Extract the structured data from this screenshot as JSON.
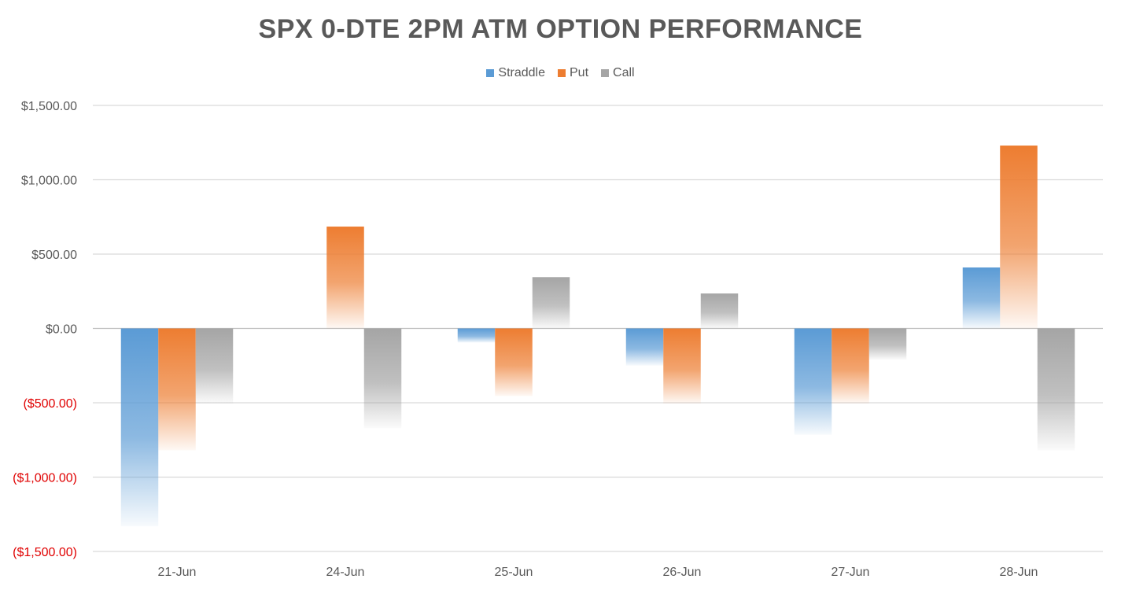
{
  "chart_data": {
    "type": "bar",
    "title": "SPX 0-DTE 2PM ATM OPTION PERFORMANCE",
    "categories": [
      "21-Jun",
      "24-Jun",
      "25-Jun",
      "26-Jun",
      "27-Jun",
      "28-Jun"
    ],
    "series": [
      {
        "name": "Straddle",
        "color": "#5B9BD5",
        "values": [
          -1330,
          0,
          -95,
          -250,
          -715,
          410
        ]
      },
      {
        "name": "Put",
        "color": "#ED7D31",
        "values": [
          -820,
          685,
          -455,
          -505,
          -505,
          1230
        ]
      },
      {
        "name": "Call",
        "color": "#A5A5A5",
        "values": [
          -505,
          -670,
          345,
          235,
          -210,
          -820
        ]
      }
    ],
    "ylim": [
      -1500,
      1500
    ],
    "yticks": [
      {
        "value": 1500,
        "label": "$1,500.00"
      },
      {
        "value": 1000,
        "label": "$1,000.00"
      },
      {
        "value": 500,
        "label": "$500.00"
      },
      {
        "value": 0,
        "label": "$0.00"
      },
      {
        "value": -500,
        "label": "($500.00)"
      },
      {
        "value": -1000,
        "label": "($1,000.00)"
      },
      {
        "value": -1500,
        "label": "($1,500.00)"
      }
    ],
    "negative_label_color": "#E00000",
    "positive_label_color": "#595959",
    "grid": true,
    "legend_position": "top",
    "xlabel": "",
    "ylabel": ""
  }
}
